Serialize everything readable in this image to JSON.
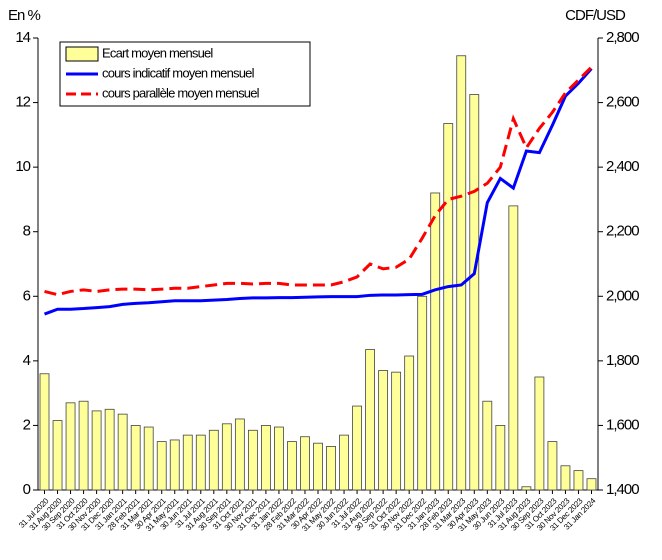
{
  "chart_data": {
    "type": "combo",
    "left_axis_label": "En %",
    "right_axis_label": "CDF/USD",
    "categories": [
      "31 Jul 2020",
      "31 Aug 2020",
      "30 Sep 2020",
      "31 Oct 2020",
      "30 Nov 2020",
      "31 Dec 2020",
      "31 Jan 2021",
      "28 Feb 2021",
      "31 Mar 2021",
      "30 Apr 2021",
      "31 May 2021",
      "30 Jun 2021",
      "31 Jul 2021",
      "31 Aug 2021",
      "30 Sep 2021",
      "31 Oct 2021",
      "30 Nov 2021",
      "31 Dec 2021",
      "31 Jan 2022",
      "28 Feb 2022",
      "31 Mar 2022",
      "30 Apr 2022",
      "31 May 2022",
      "30 Jun 2022",
      "31 Jul 2022",
      "31 Aug 2022",
      "30 Sep 2022",
      "31 Oct 2022",
      "30 Nov 2022",
      "31 Dec 2022",
      "31 Jan 2023",
      "28 Feb 2023",
      "31 Mar 2023",
      "30 Apr 2023",
      "31 May 2023",
      "30 Jun 2023",
      "31 Jul 2023",
      "31 Aug 2023",
      "30 Sep 2023",
      "31 Oct 2023",
      "30 Nov 2023",
      "31 Dec 2023",
      "31 Jan 2024"
    ],
    "series": [
      {
        "name": "Ecart moyen mensuel",
        "type": "bar",
        "color": "#ffff99",
        "values": [
          3.6,
          2.15,
          2.7,
          2.75,
          2.45,
          2.5,
          2.35,
          2.0,
          1.95,
          1.5,
          1.55,
          1.7,
          1.7,
          1.85,
          2.05,
          2.2,
          1.85,
          2.0,
          1.95,
          1.5,
          1.65,
          1.45,
          1.35,
          1.7,
          2.6,
          4.35,
          3.7,
          3.65,
          4.15,
          6.0,
          9.2,
          11.35,
          13.45,
          12.25,
          2.75,
          2.0,
          8.8,
          0.1,
          3.5,
          1.5,
          0.75,
          0.6,
          0.35
        ]
      },
      {
        "name": "cours indicatif moyen mensuel",
        "type": "line",
        "axis": "y2",
        "color": "#0000ff",
        "dashed": false,
        "values": [
          1945,
          1960,
          1960,
          1962,
          1965,
          1968,
          1975,
          1978,
          1980,
          1983,
          1986,
          1986,
          1986,
          1988,
          1990,
          1993,
          1995,
          1995,
          1996,
          1996,
          1997,
          1998,
          1999,
          1999,
          1999,
          2003,
          2004,
          2004,
          2005,
          2006,
          2020,
          2030,
          2035,
          2070,
          2290,
          2365,
          2335,
          2450,
          2445,
          2530,
          2620,
          2660,
          2705
        ]
      },
      {
        "name": "cours parallèle moyen mensuel",
        "type": "line",
        "axis": "y2",
        "color": "#ff0000",
        "dashed": true,
        "values": [
          2015,
          2005,
          2015,
          2020,
          2015,
          2020,
          2022,
          2022,
          2020,
          2022,
          2025,
          2025,
          2030,
          2035,
          2040,
          2040,
          2038,
          2040,
          2040,
          2035,
          2035,
          2035,
          2035,
          2045,
          2060,
          2100,
          2085,
          2090,
          2115,
          2180,
          2250,
          2300,
          2310,
          2325,
          2350,
          2400,
          2550,
          2460,
          2520,
          2570,
          2630,
          2670,
          2710
        ]
      }
    ],
    "ylim": [
      0,
      14
    ],
    "yticks": [
      0,
      2,
      4,
      6,
      8,
      10,
      12,
      14
    ],
    "y2lim": [
      1400,
      2800
    ],
    "y2ticks": [
      {
        "value": 1400,
        "label": "1,400"
      },
      {
        "value": 1600,
        "label": "1,600"
      },
      {
        "value": 1800,
        "label": "1,800"
      },
      {
        "value": 2000,
        "label": "2,000"
      },
      {
        "value": 2200,
        "label": "2,200"
      },
      {
        "value": 2400,
        "label": "2,400"
      },
      {
        "value": 2600,
        "label": "2,600"
      },
      {
        "value": 2800,
        "label": "2,800"
      }
    ],
    "grid": false,
    "legend": "top-left"
  }
}
